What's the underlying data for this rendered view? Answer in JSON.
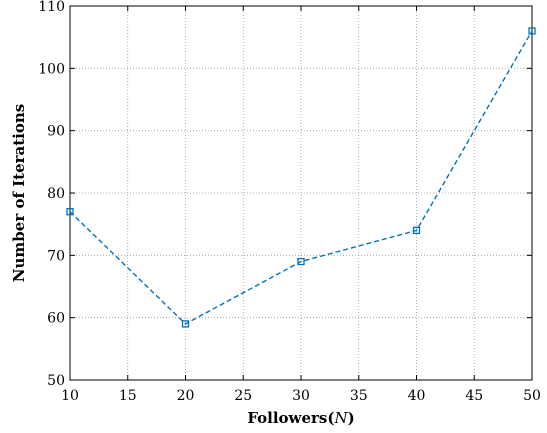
{
  "chart_data": {
    "type": "line",
    "title": "",
    "xlabel": {
      "prefix": "Followers(",
      "symbol": "N",
      "suffix": ")"
    },
    "ylabel": "Number of Iterations",
    "xlim": [
      10,
      50
    ],
    "ylim": [
      50,
      110
    ],
    "xticks": [
      10,
      15,
      20,
      25,
      30,
      35,
      40,
      45,
      50
    ],
    "yticks": [
      50,
      60,
      70,
      80,
      90,
      100,
      110
    ],
    "grid": true,
    "series": [
      {
        "x": [
          10,
          20,
          30,
          40,
          50
        ],
        "y": [
          77,
          59,
          69,
          74,
          106
        ],
        "color": "#0072BD",
        "line_style": "dashed",
        "marker": "square"
      }
    ]
  }
}
